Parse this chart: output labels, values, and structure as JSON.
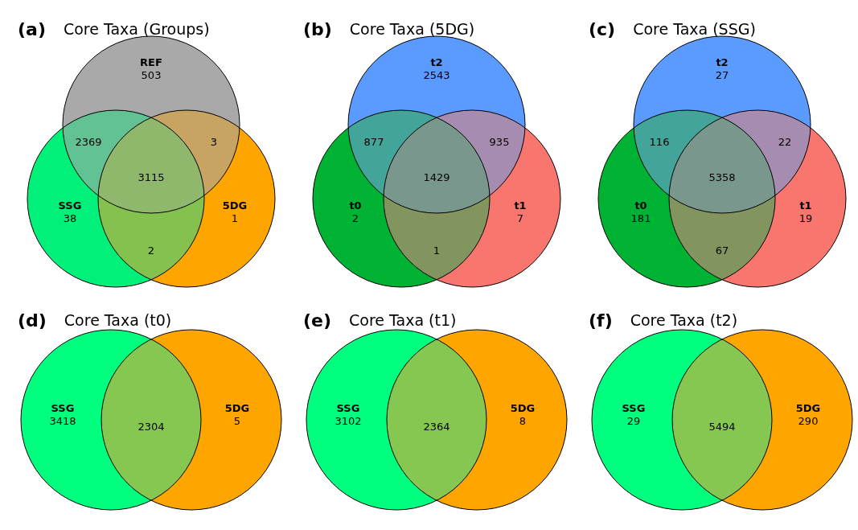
{
  "chart_data": [
    {
      "type": "other",
      "title": "Core Taxa (Groups)",
      "annotations": [
        "(a)",
        "2369",
        "3",
        "2",
        "3115"
      ],
      "data_labels": true,
      "categories": [
        "REF",
        "SSG",
        "5DG"
      ],
      "values": [
        503,
        38,
        1
      ],
      "colors": [
        "#a9a9a9",
        "#00f07a",
        "#ffa500"
      ]
    },
    {
      "type": "other",
      "title": "Core Taxa (5DG)",
      "annotations": [
        "(b)",
        "877",
        "935",
        "1",
        "1429"
      ],
      "data_labels": true,
      "categories": [
        "t2",
        "t0",
        "t1"
      ],
      "values": [
        2543,
        2,
        7
      ],
      "colors": [
        "#5b9bff",
        "#00b233",
        "#f8766d"
      ]
    },
    {
      "type": "other",
      "title": "Core Taxa (SSG)",
      "annotations": [
        "(c)",
        "116",
        "22",
        "67",
        "5358"
      ],
      "data_labels": true,
      "categories": [
        "t2",
        "t0",
        "t1"
      ],
      "values": [
        27,
        181,
        19
      ],
      "colors": [
        "#5b9bff",
        "#00b233",
        "#f8766d"
      ]
    },
    {
      "type": "other",
      "title": "Core Taxa (t0)",
      "annotations": [
        "(d)",
        "2304"
      ],
      "data_labels": true,
      "categories": [
        "SSG",
        "5DG"
      ],
      "values": [
        3418,
        5
      ],
      "colors": [
        "#00ff7f",
        "#ffa500"
      ]
    },
    {
      "type": "other",
      "title": "Core Taxa (t1)",
      "annotations": [
        "(e)",
        "2364"
      ],
      "data_labels": true,
      "categories": [
        "SSG",
        "5DG"
      ],
      "values": [
        3102,
        8
      ],
      "colors": [
        "#00ff7f",
        "#ffa500"
      ]
    },
    {
      "type": "other",
      "title": "Core Taxa (t2)",
      "annotations": [
        "(f)",
        "5494"
      ],
      "data_labels": true,
      "categories": [
        "SSG",
        "5DG"
      ],
      "values": [
        29,
        290
      ],
      "colors": [
        "#00ff7f",
        "#ffa500"
      ]
    }
  ]
}
